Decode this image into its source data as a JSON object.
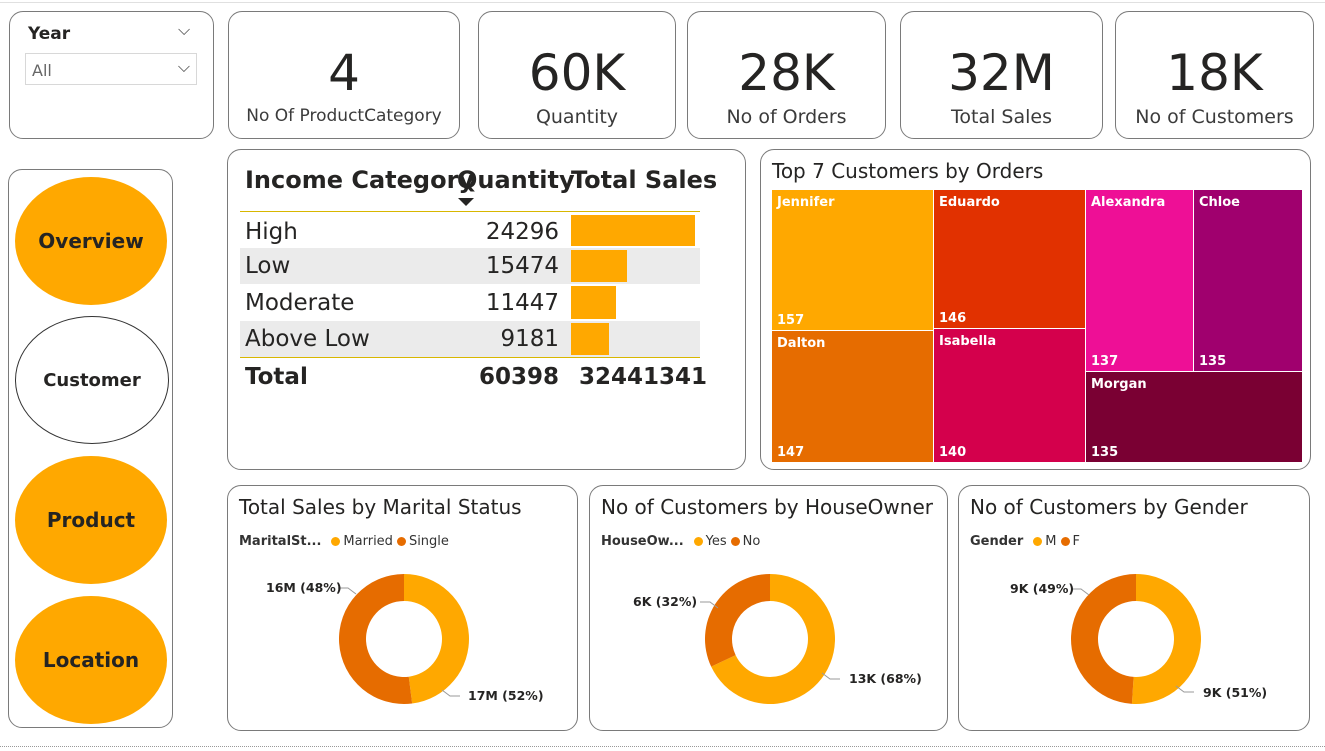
{
  "filter": {
    "title": "Year",
    "selected": "All"
  },
  "kpis": [
    {
      "value": "4",
      "label": "No Of ProductCategory"
    },
    {
      "value": "60K",
      "label": "Quantity"
    },
    {
      "value": "28K",
      "label": "No of Orders"
    },
    {
      "value": "32M",
      "label": "Total Sales"
    },
    {
      "value": "18K",
      "label": "No of Customers"
    }
  ],
  "nav": {
    "overview": "Overview",
    "customer": "Customer",
    "product": "Product",
    "location": "Location"
  },
  "income_table": {
    "headers": {
      "category": "Income Category",
      "quantity": "Quantity",
      "total_sales": "Total Sales"
    },
    "rows": [
      {
        "category": "High",
        "quantity": "24296",
        "sales_fraction": 1.0
      },
      {
        "category": "Low",
        "quantity": "15474",
        "sales_fraction": 0.45
      },
      {
        "category": "Moderate",
        "quantity": "11447",
        "sales_fraction": 0.37
      },
      {
        "category": "Above Low",
        "quantity": "9181",
        "sales_fraction": 0.31
      }
    ],
    "total": {
      "label": "Total",
      "quantity": "60398",
      "total_sales": "32441341"
    }
  },
  "treemap": {
    "title": "Top 7 Customers by Orders",
    "items": [
      {
        "name": "Jennifer",
        "value": "157",
        "color": "#FFA800"
      },
      {
        "name": "Dalton",
        "value": "147",
        "color": "#E66C00"
      },
      {
        "name": "Eduardo",
        "value": "146",
        "color": "#E13100"
      },
      {
        "name": "Isabella",
        "value": "140",
        "color": "#D4004C"
      },
      {
        "name": "Alexandra",
        "value": "137",
        "color": "#EE0F96"
      },
      {
        "name": "Chloe",
        "value": "135",
        "color": "#A0006E"
      },
      {
        "name": "Morgan",
        "value": "135",
        "color": "#7A0033"
      }
    ]
  },
  "chart_data": [
    {
      "type": "pie",
      "title": "Total Sales by Marital Status",
      "legend_title": "MaritalSt...",
      "series": [
        {
          "name": "Married",
          "value": 16,
          "label": "16M (48%)",
          "color": "#FFA800"
        },
        {
          "name": "Single",
          "value": 17,
          "label": "17M (52%)",
          "color": "#E66C00"
        }
      ]
    },
    {
      "type": "pie",
      "title": "No of Customers by HouseOwner",
      "legend_title": "HouseOw...",
      "series": [
        {
          "name": "Yes",
          "value": 13,
          "label": "13K (68%)",
          "color": "#FFA800"
        },
        {
          "name": "No",
          "value": 6,
          "label": "6K (32%)",
          "color": "#E66C00"
        }
      ]
    },
    {
      "type": "pie",
      "title": "No of Customers by Gender",
      "legend_title": "Gender",
      "series": [
        {
          "name": "M",
          "value": 9,
          "label": "9K (51%)",
          "color": "#FFA800"
        },
        {
          "name": "F",
          "value": 9,
          "label": "9K (49%)",
          "color": "#E66C00"
        }
      ]
    }
  ],
  "colors": {
    "accent": "#FFA800",
    "accent2": "#E66C00",
    "row_band": "#EBEBEB"
  }
}
